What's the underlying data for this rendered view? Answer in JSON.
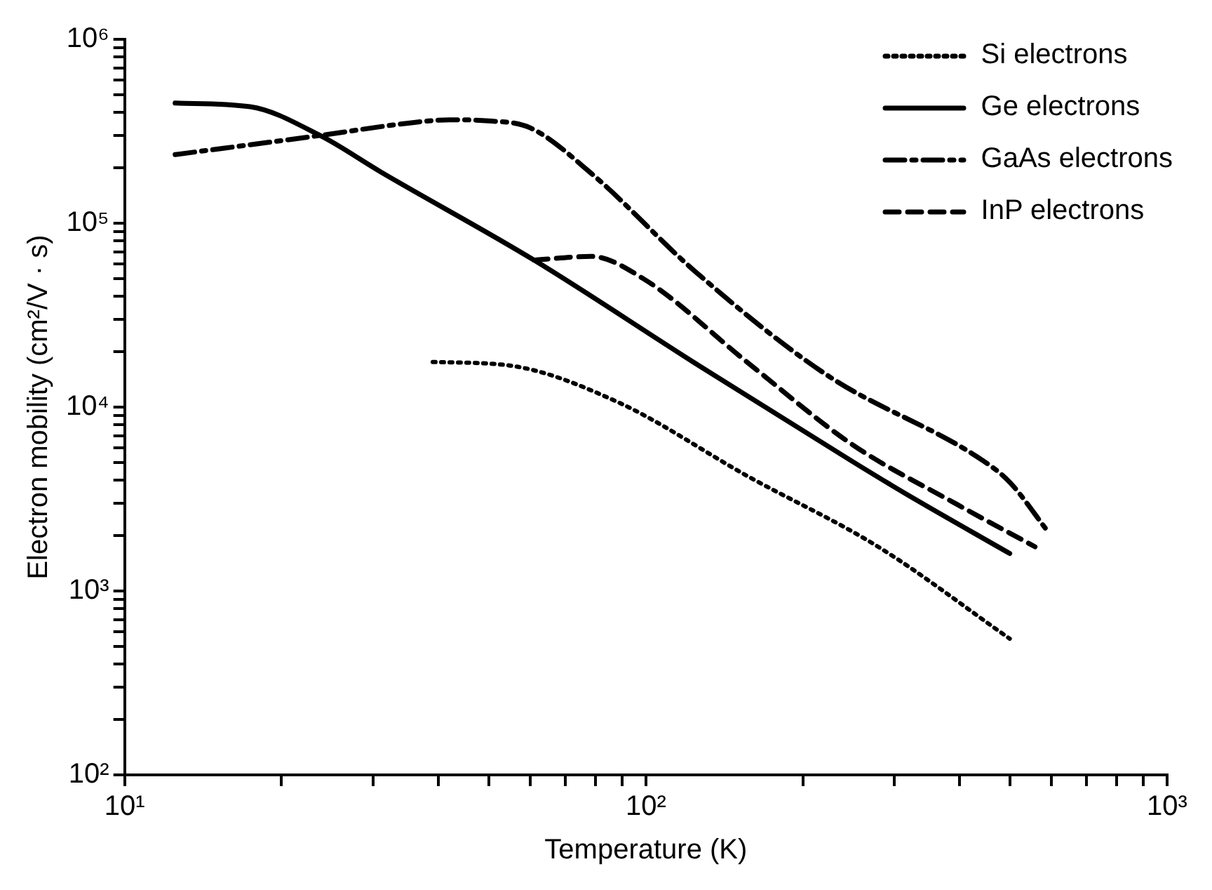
{
  "chart_data": {
    "type": "line",
    "xlabel": "Temperature (K)",
    "ylabel": "Electron mobility (cm²/V · s)",
    "log": "xy",
    "grid": false,
    "legend": "top right",
    "marker": "none",
    "xlim": [
      10,
      1000
    ],
    "ylim": [
      100,
      1000000
    ],
    "xticks": [
      {
        "value": 10,
        "label": "10¹"
      },
      {
        "value": 20,
        "label": null
      },
      {
        "value": 30,
        "label": null
      },
      {
        "value": 40,
        "label": null
      },
      {
        "value": 50,
        "label": null
      },
      {
        "value": 60,
        "label": null
      },
      {
        "value": 70,
        "label": null
      },
      {
        "value": 80,
        "label": null
      },
      {
        "value": 90,
        "label": null
      },
      {
        "value": 100,
        "label": "10²"
      },
      {
        "value": 200,
        "label": null
      },
      {
        "value": 300,
        "label": null
      },
      {
        "value": 400,
        "label": null
      },
      {
        "value": 500,
        "label": null
      },
      {
        "value": 600,
        "label": null
      },
      {
        "value": 700,
        "label": null
      },
      {
        "value": 800,
        "label": null
      },
      {
        "value": 900,
        "label": null
      },
      {
        "value": 1000,
        "label": "10³"
      }
    ],
    "yticks": [
      {
        "value": 100,
        "label": "10²"
      },
      {
        "value": 200,
        "label": null
      },
      {
        "value": 300,
        "label": null
      },
      {
        "value": 400,
        "label": null
      },
      {
        "value": 500,
        "label": null
      },
      {
        "value": 600,
        "label": null
      },
      {
        "value": 700,
        "label": null
      },
      {
        "value": 800,
        "label": null
      },
      {
        "value": 900,
        "label": null
      },
      {
        "value": 1000,
        "label": "10³"
      },
      {
        "value": 2000,
        "label": null
      },
      {
        "value": 3000,
        "label": null
      },
      {
        "value": 4000,
        "label": null
      },
      {
        "value": 5000,
        "label": null
      },
      {
        "value": 6000,
        "label": null
      },
      {
        "value": 7000,
        "label": null
      },
      {
        "value": 8000,
        "label": null
      },
      {
        "value": 9000,
        "label": null
      },
      {
        "value": 10000,
        "label": "10⁴"
      },
      {
        "value": 20000,
        "label": null
      },
      {
        "value": 30000,
        "label": null
      },
      {
        "value": 40000,
        "label": null
      },
      {
        "value": 50000,
        "label": null
      },
      {
        "value": 60000,
        "label": null
      },
      {
        "value": 70000,
        "label": null
      },
      {
        "value": 80000,
        "label": null
      },
      {
        "value": 90000,
        "label": null
      },
      {
        "value": 100000,
        "label": "10⁵"
      },
      {
        "value": 200000,
        "label": null
      },
      {
        "value": 300000,
        "label": null
      },
      {
        "value": 400000,
        "label": null
      },
      {
        "value": 500000,
        "label": null
      },
      {
        "value": 600000,
        "label": null
      },
      {
        "value": 700000,
        "label": null
      },
      {
        "value": 800000,
        "label": null
      },
      {
        "value": 900000,
        "label": null
      },
      {
        "value": 1000000,
        "label": "10⁶"
      }
    ],
    "series": [
      {
        "name": "Si electrons",
        "color": "#000000",
        "line_style": "dotted",
        "x": [
          39,
          55,
          88,
          157,
          279,
          499
        ],
        "values": [
          17600,
          16800,
          10700,
          4200,
          1740,
          550
        ]
      },
      {
        "name": "Ge electrons",
        "color": "#000000",
        "line_style": "solid",
        "x": [
          12.5,
          17.4,
          23.7,
          31,
          61,
          124,
          248,
          314,
          499
        ],
        "values": [
          450000,
          430000,
          300000,
          190000,
          63000,
          17400,
          5100,
          3400,
          1600
        ]
      },
      {
        "name": "GaAs electrons",
        "color": "#000000",
        "line_style": "dashdot",
        "x": [
          12.5,
          23.7,
          35,
          42,
          50,
          60,
          78.5,
          124,
          222,
          444,
          499,
          591
        ],
        "values": [
          236000,
          300000,
          350000,
          365000,
          360000,
          330000,
          187000,
          55000,
          15000,
          5100,
          3900,
          2100
        ]
      },
      {
        "name": "InP electrons",
        "color": "#000000",
        "line_style": "dashed",
        "x": [
          61,
          78.5,
          98.8,
          157,
          248,
          396,
          558
        ],
        "values": [
          63000,
          66000,
          50000,
          17400,
          6300,
          2950,
          1740
        ]
      }
    ]
  }
}
